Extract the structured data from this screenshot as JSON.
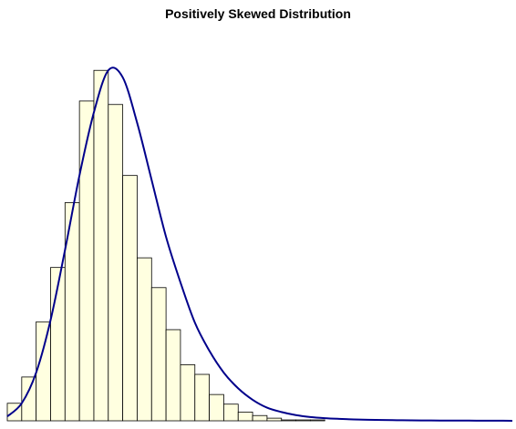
{
  "chart_data": {
    "type": "bar",
    "title": "Positively Skewed Distribution",
    "xlabel": "",
    "ylabel": "",
    "bin_edges": [
      0,
      1,
      2,
      3,
      4,
      5,
      6,
      7,
      8,
      9,
      10,
      11,
      12,
      13,
      14,
      15,
      16,
      17,
      18,
      19,
      20,
      21,
      22,
      23,
      24,
      25,
      26,
      27,
      28,
      29,
      30,
      31,
      32,
      33,
      34,
      35
    ],
    "values": [
      20,
      50,
      113,
      175,
      249,
      365,
      400,
      361,
      280,
      186,
      152,
      104,
      64,
      53,
      30,
      19,
      10,
      6,
      3,
      1,
      1,
      1,
      0,
      0,
      0,
      0,
      0,
      0,
      0,
      0,
      0,
      0,
      0,
      0,
      0
    ],
    "density_curve": {
      "x": [
        0,
        1,
        2,
        3,
        4,
        5,
        6,
        7,
        8,
        9,
        10,
        11,
        12,
        13,
        14,
        15,
        16,
        17,
        18,
        19,
        20,
        21,
        22,
        23,
        24,
        25,
        26,
        27,
        28,
        29,
        30,
        31,
        32,
        33,
        34,
        35
      ],
      "y": [
        5,
        20,
        55,
        115,
        195,
        280,
        352,
        400,
        392,
        340,
        275,
        210,
        158,
        112,
        80,
        55,
        37,
        24,
        15,
        10,
        6.5,
        4.3,
        3,
        2.2,
        1.6,
        1.2,
        0.9,
        0.7,
        0.5,
        0.4,
        0.3,
        0.25,
        0.2,
        0.15,
        0.1,
        0.05
      ]
    },
    "ylim": [
      0,
      420
    ],
    "colors": {
      "bar_fill": "#ffffe0",
      "bar_stroke": "#000000",
      "curve": "#00008b"
    },
    "grid": false,
    "legend": "none"
  }
}
